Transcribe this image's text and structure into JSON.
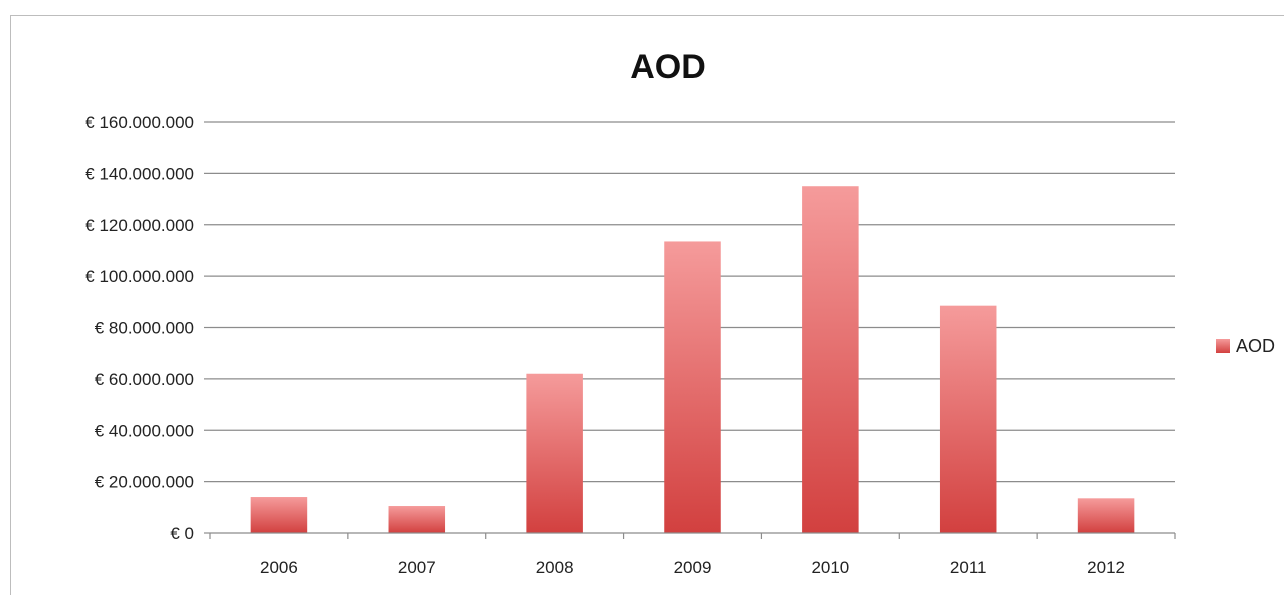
{
  "chart_data": {
    "type": "bar",
    "title": "AOD",
    "xlabel": "",
    "ylabel": "",
    "categories": [
      "2006",
      "2007",
      "2008",
      "2009",
      "2010",
      "2011",
      "2012"
    ],
    "series": [
      {
        "name": "AOD",
        "values": [
          14000000,
          10500000,
          62000000,
          113500000,
          135000000,
          88500000,
          13500000
        ]
      }
    ],
    "ylim": [
      0,
      160000000
    ],
    "yticks": [
      0,
      20000000,
      40000000,
      60000000,
      80000000,
      100000000,
      120000000,
      140000000,
      160000000
    ],
    "ytick_labels": [
      "€ 0",
      "€ 20.000.000",
      "€ 40.000.000",
      "€ 60.000.000",
      "€ 80.000.000",
      "€ 100.000.000",
      "€ 120.000.000",
      "€ 140.000.000",
      "€ 160.000.000"
    ],
    "grid": true,
    "legend_position": "right",
    "colors": {
      "bar_top": "#f59b9b",
      "bar_bottom": "#d2403f",
      "grid": "#8c8c8c"
    }
  }
}
